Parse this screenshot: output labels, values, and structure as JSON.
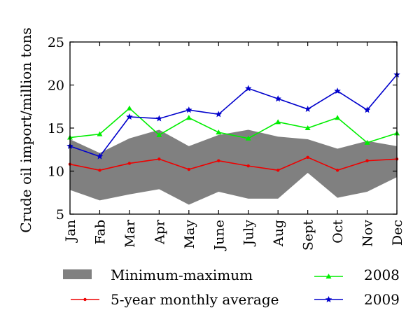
{
  "chart_data": {
    "type": "line",
    "title": "",
    "xlabel": "",
    "ylabel": "Crude oil import/million tons",
    "ylim": [
      5,
      25
    ],
    "yticks": [
      5,
      10,
      15,
      20,
      25
    ],
    "grid": false,
    "legend_position": "bottom",
    "categories": [
      "Jan",
      "Fab",
      "Mar",
      "Apr",
      "May",
      "June",
      "July",
      "Aug",
      "Sept",
      "Oct",
      "Nov",
      "Dec"
    ],
    "band": {
      "name": "Minimum-maximum",
      "color": "#808080",
      "min": [
        7.8,
        6.6,
        7.3,
        7.9,
        6.1,
        7.6,
        6.8,
        6.8,
        9.8,
        6.9,
        7.6,
        9.3
      ],
      "max": [
        13.7,
        12.1,
        13.8,
        14.8,
        12.9,
        14.2,
        14.8,
        14.0,
        13.7,
        12.6,
        13.5,
        12.9
      ]
    },
    "series": [
      {
        "name": "5-year monthly average",
        "color": "#ee0000",
        "marker": "dot",
        "values": [
          10.8,
          10.1,
          10.9,
          11.4,
          10.2,
          11.2,
          10.6,
          10.1,
          11.6,
          10.1,
          11.2,
          11.4
        ]
      },
      {
        "name": "2008",
        "color": "#00ee00",
        "marker": "triangle",
        "values": [
          13.9,
          14.3,
          17.3,
          14.2,
          16.2,
          14.5,
          13.8,
          15.7,
          15.0,
          16.2,
          13.3,
          14.4
        ]
      },
      {
        "name": "2009",
        "color": "#0000cc",
        "marker": "star",
        "values": [
          12.9,
          11.7,
          16.3,
          16.1,
          17.1,
          16.6,
          19.6,
          18.4,
          17.2,
          19.3,
          17.1,
          21.2
        ]
      }
    ]
  }
}
